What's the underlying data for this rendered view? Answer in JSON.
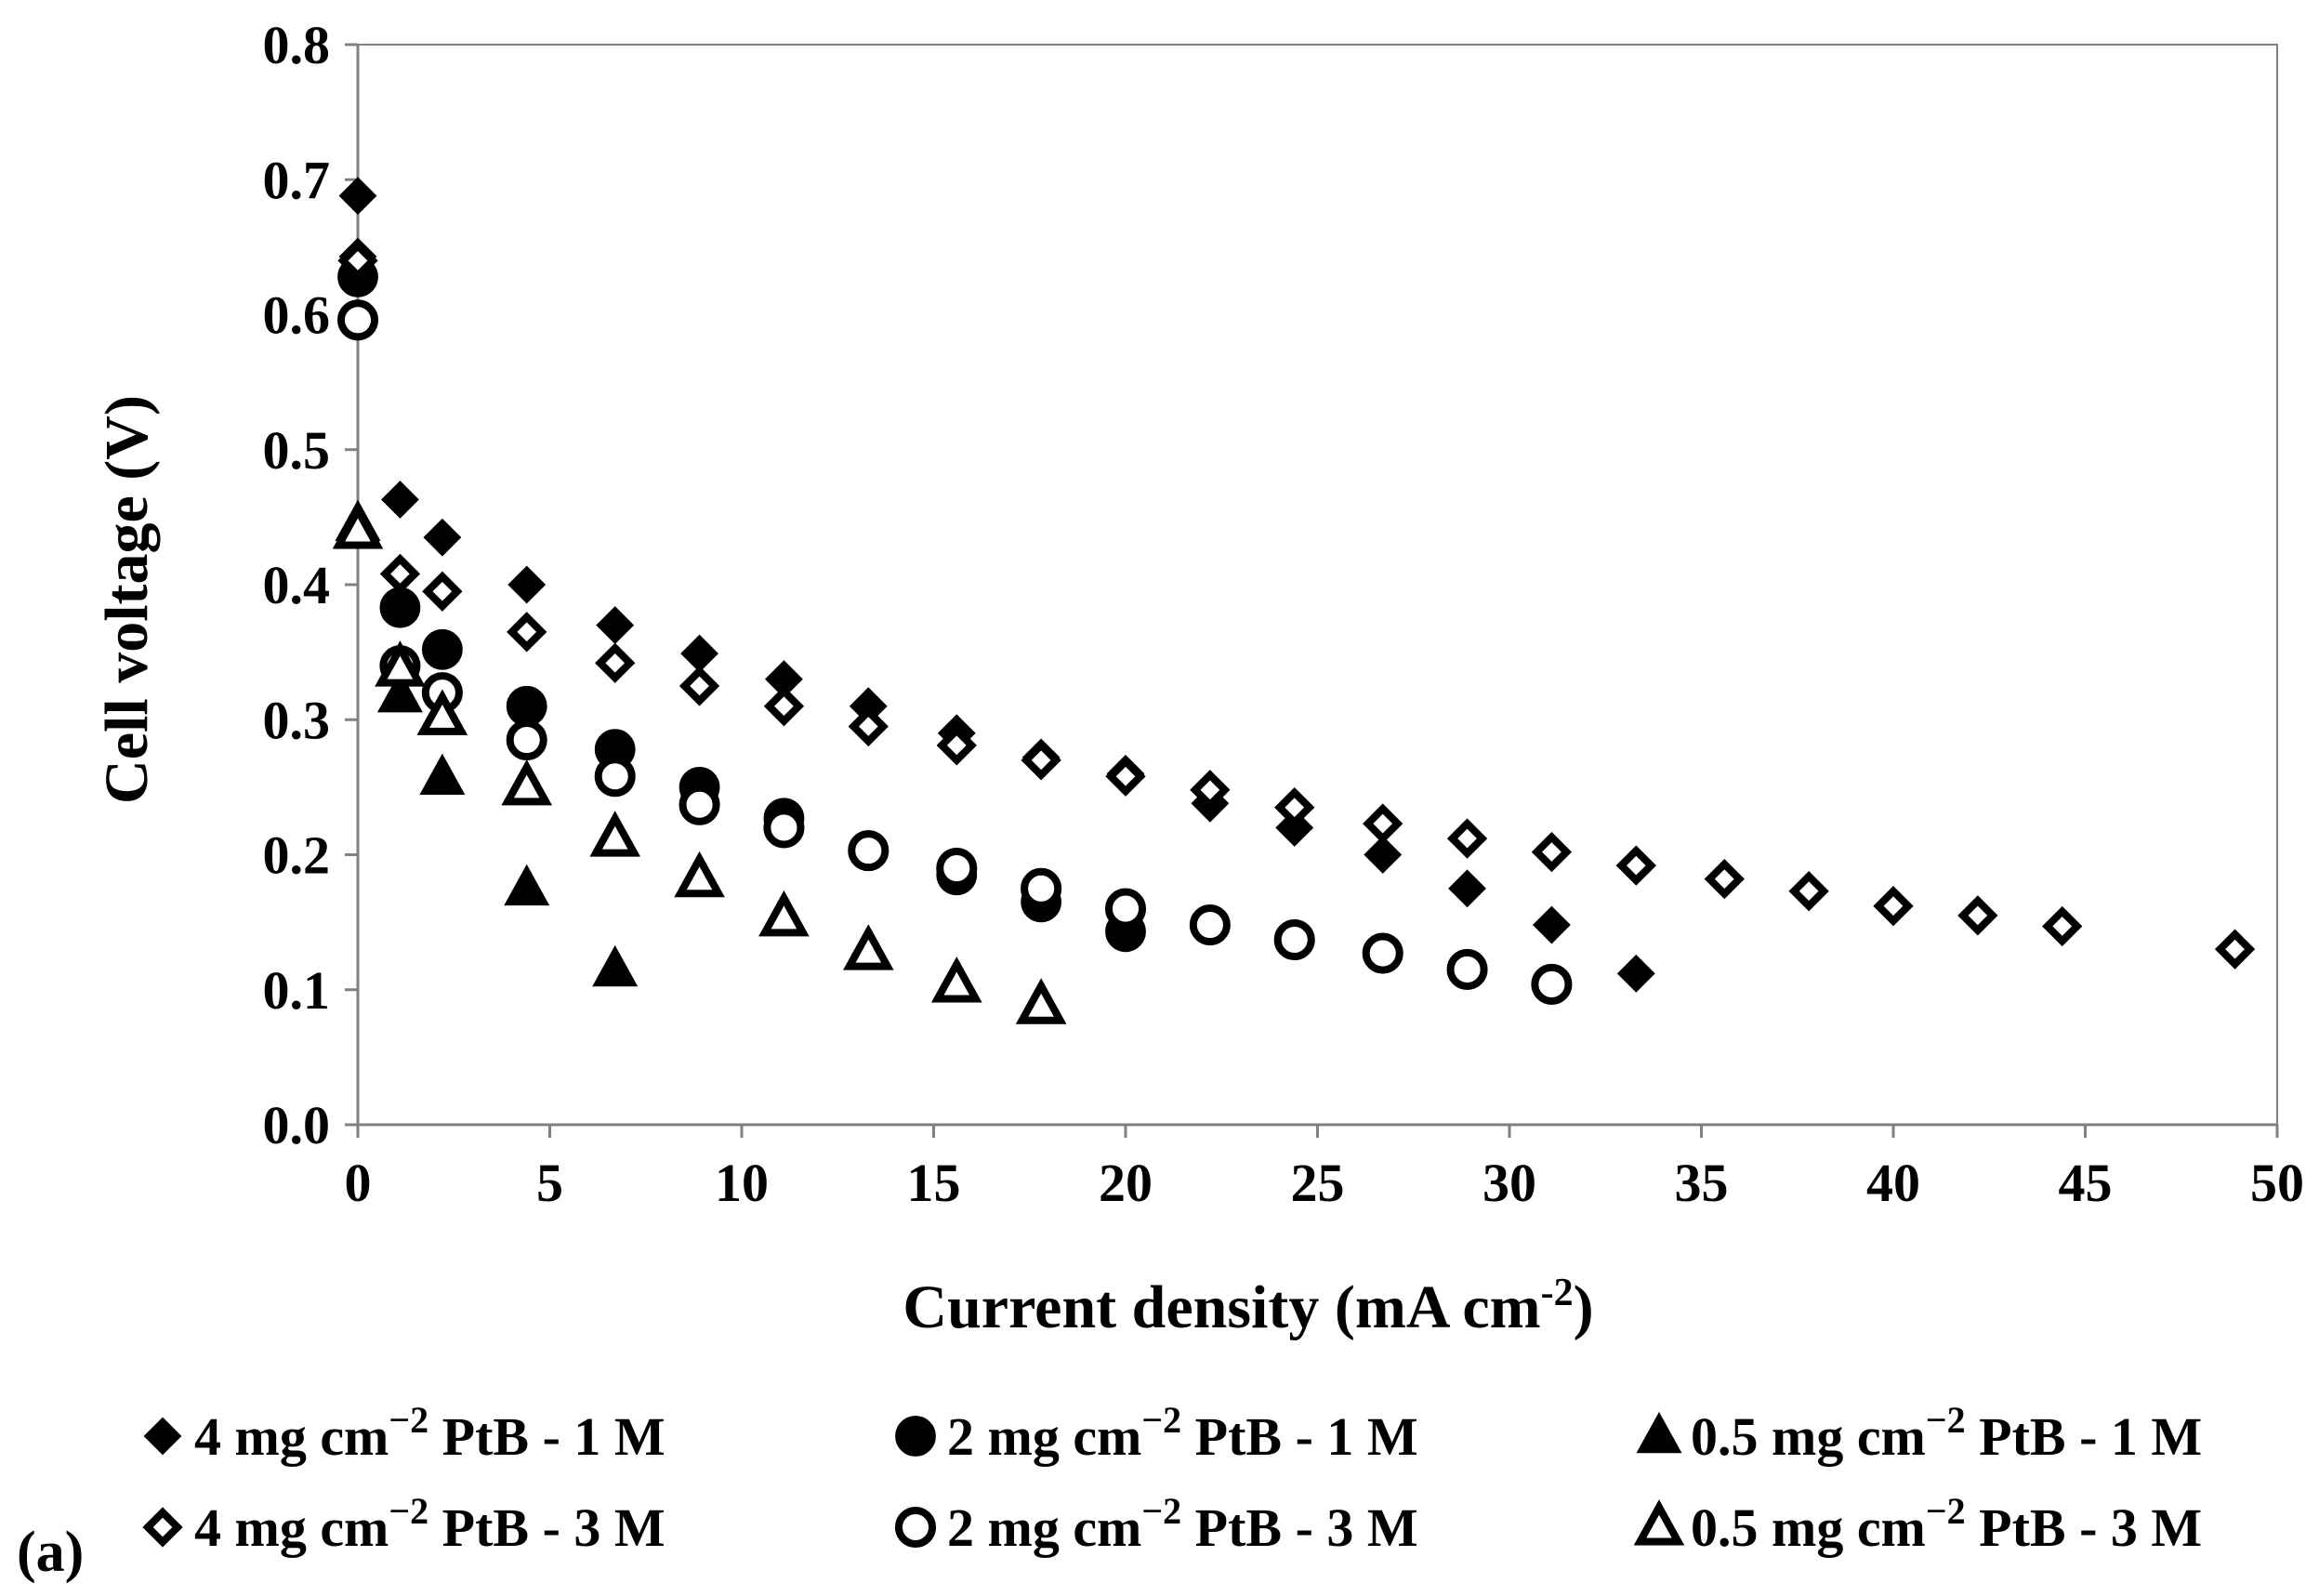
{
  "chart_data": {
    "type": "scatter",
    "panel_label": "(a)",
    "xlabel": {
      "main": "Current  density (mA cm",
      "sup": "-2",
      "tail": ")"
    },
    "ylabel": "Cell voltage (V)",
    "xlim": [
      0,
      50
    ],
    "ylim": [
      0,
      0.8
    ],
    "xticks": [
      "0",
      "5",
      "10",
      "15",
      "20",
      "25",
      "30",
      "35",
      "40",
      "45",
      "50"
    ],
    "yticks": [
      "0.0",
      "0.1",
      "0.2",
      "0.3",
      "0.4",
      "0.5",
      "0.6",
      "0.7",
      "0.8"
    ],
    "grid": false,
    "legend_position": "bottom",
    "series": [
      {
        "name": "4 mg cm-2 PtB - 1 M",
        "label_parts": {
          "pre": "4 mg cm",
          "sup": "−2",
          "post": " PtB - 1 M"
        },
        "marker": "diamond",
        "filled": true,
        "color": "#000000",
        "x": [
          0,
          0,
          1.1,
          2.2,
          4.4,
          6.7,
          8.9,
          11.1,
          13.3,
          15.6,
          17.8,
          20.0,
          22.2,
          24.4,
          26.7,
          28.9,
          31.1,
          33.3
        ],
        "y": [
          0.688,
          0.643,
          0.463,
          0.435,
          0.4,
          0.37,
          0.349,
          0.33,
          0.31,
          0.29,
          0.272,
          0.26,
          0.238,
          0.22,
          0.2,
          0.175,
          0.148,
          0.112
        ]
      },
      {
        "name": "2 mg cm-2 PtB - 1 M",
        "label_parts": {
          "pre": "2 mg cm",
          "sup": "−2",
          "post": " PtB - 1 M"
        },
        "marker": "circle",
        "filled": true,
        "color": "#000000",
        "x": [
          0,
          1.1,
          2.2,
          4.4,
          6.7,
          8.9,
          11.1,
          13.3,
          15.6,
          17.8,
          20.0
        ],
        "y": [
          0.628,
          0.383,
          0.352,
          0.31,
          0.278,
          0.25,
          0.227,
          0.203,
          0.185,
          0.165,
          0.143
        ]
      },
      {
        "name": "0.5 mg cm-2 PtB - 1 M",
        "label_parts": {
          "pre": "0.5 mg cm",
          "sup": "−2",
          "post": " PtB - 1 M"
        },
        "marker": "triangle",
        "filled": true,
        "color": "#000000",
        "x": [
          0,
          1.1,
          2.2,
          4.4,
          6.7
        ],
        "y": [
          0.445,
          0.318,
          0.257,
          0.175,
          0.115
        ]
      },
      {
        "name": "4 mg cm-2 PtB - 3 M",
        "label_parts": {
          "pre": "4 mg cm",
          "sup": "−2",
          "post": " PtB - 3 M"
        },
        "marker": "diamond",
        "filled": false,
        "color": "#000000",
        "x": [
          0,
          1.1,
          2.2,
          4.4,
          6.7,
          8.9,
          11.1,
          13.3,
          15.6,
          17.8,
          20.0,
          22.2,
          24.4,
          26.7,
          28.9,
          31.1,
          33.3,
          35.6,
          37.8,
          40.0,
          42.2,
          44.4,
          48.9
        ],
        "y": [
          0.64,
          0.408,
          0.395,
          0.365,
          0.342,
          0.325,
          0.31,
          0.295,
          0.281,
          0.27,
          0.258,
          0.248,
          0.235,
          0.223,
          0.212,
          0.202,
          0.192,
          0.182,
          0.173,
          0.162,
          0.155,
          0.147,
          0.13
        ]
      },
      {
        "name": "2 mg cm-2 PtB - 3 M",
        "label_parts": {
          "pre": "2 mg cm",
          "sup": "−2",
          "post": " PtB - 3 M"
        },
        "marker": "circle",
        "filled": false,
        "color": "#000000",
        "x": [
          0,
          1.1,
          2.2,
          4.4,
          6.7,
          8.9,
          11.1,
          13.3,
          15.6,
          17.8,
          20.0,
          22.2,
          24.4,
          26.7,
          28.9,
          31.1
        ],
        "y": [
          0.596,
          0.34,
          0.32,
          0.285,
          0.258,
          0.237,
          0.22,
          0.203,
          0.19,
          0.175,
          0.16,
          0.148,
          0.137,
          0.127,
          0.115,
          0.104
        ]
      },
      {
        "name": "0.5 mg cm-2 PtB - 3 M",
        "label_parts": {
          "pre": "0.5 mg cm",
          "sup": "−2",
          "post": " PtB - 3 M"
        },
        "marker": "triangle",
        "filled": false,
        "color": "#000000",
        "x": [
          0,
          1.1,
          2.2,
          4.4,
          6.7,
          8.9,
          11.1,
          13.3,
          15.6,
          17.8
        ],
        "y": [
          0.44,
          0.338,
          0.302,
          0.25,
          0.212,
          0.182,
          0.153,
          0.128,
          0.104,
          0.088
        ]
      }
    ]
  }
}
